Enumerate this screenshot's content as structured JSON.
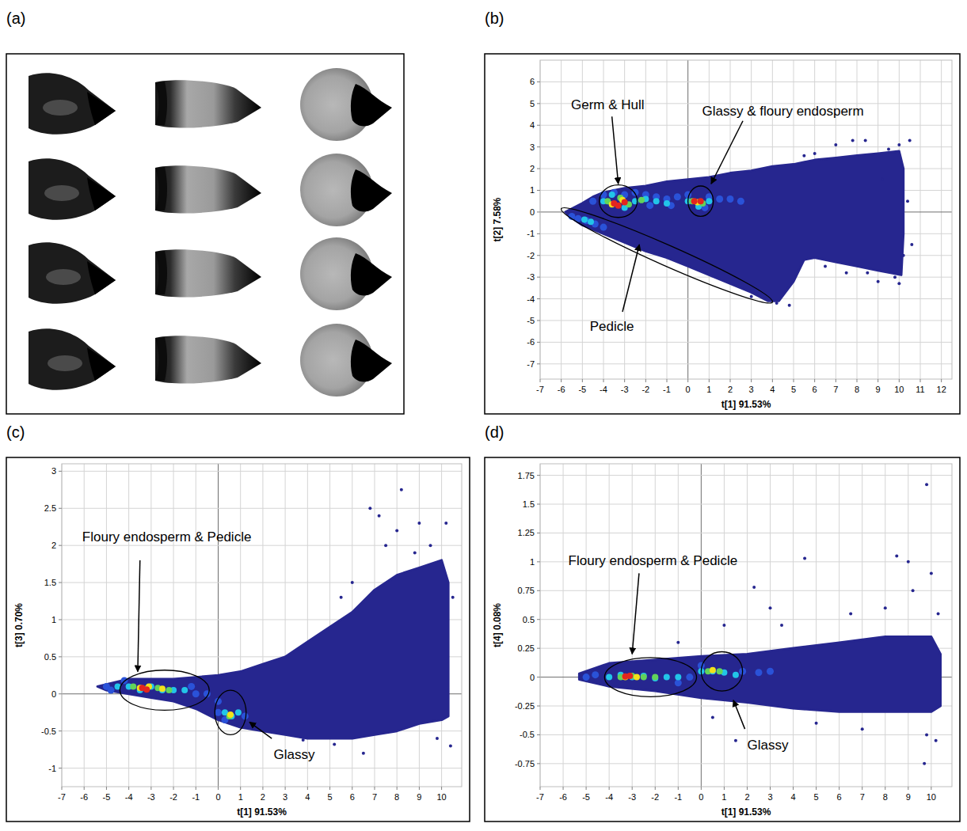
{
  "image_panel": {
    "label": "(a)"
  },
  "chart_data": [
    {
      "type": "scatter",
      "label": "(b)",
      "x_label": "t[1] 91.53%",
      "y_label": "t[2] 7.58%",
      "grid": true,
      "xlim": [
        -7,
        12.5
      ],
      "ylim": [
        -7.7,
        7
      ],
      "xticks": [
        -7,
        -6,
        -5,
        -4,
        -3,
        -2,
        -1,
        0,
        1,
        2,
        3,
        4,
        5,
        6,
        7,
        8,
        9,
        10,
        11,
        12
      ],
      "yticks": [
        -7,
        -6,
        -5,
        -4,
        -3,
        -2,
        -1,
        0,
        1,
        2,
        3,
        4,
        5,
        6
      ],
      "cloud": {
        "color": "#26268f",
        "x": [
          -5.8,
          -5,
          -4.5,
          -4,
          -3,
          -2,
          -1,
          0,
          1,
          2,
          3,
          4,
          5,
          6,
          7,
          8,
          9,
          10,
          10.2,
          10.2,
          10.1,
          9,
          8,
          7,
          6,
          5.5,
          5,
          4.3,
          3.8,
          3,
          2,
          1,
          0,
          -1,
          -2,
          -3,
          -4,
          -5,
          -5.6
        ],
        "y": [
          0,
          0.4,
          0.7,
          0.9,
          1.1,
          1.2,
          1.4,
          1.5,
          1.6,
          1.8,
          1.9,
          2.1,
          2.2,
          2.4,
          2.5,
          2.6,
          2.7,
          2.8,
          2.0,
          -1,
          -2.9,
          -2.7,
          -2.5,
          -2.3,
          -2.1,
          -2.2,
          -3.2,
          -4.1,
          -4.1,
          -3.7,
          -3.3,
          -2.9,
          -2.5,
          -2.1,
          -1.8,
          -1.4,
          -1.0,
          -0.6,
          -0.2
        ]
      },
      "points": {
        "color": "#26268f",
        "x": [
          10.5,
          10,
          9.5,
          8.4,
          7.8,
          7,
          9,
          10,
          9.8,
          8.5,
          6.5,
          4.8,
          4.2,
          3,
          6,
          9.2,
          10.4,
          10.6,
          7.5,
          5.5,
          10.2
        ],
        "y": [
          3.3,
          3.1,
          2.9,
          3.3,
          3.3,
          3.1,
          -3.2,
          -3.3,
          -3.0,
          -2.8,
          -2.5,
          -4.3,
          -4.2,
          -3.9,
          2.7,
          1.5,
          0.5,
          -1.5,
          -2.8,
          2.6,
          -2.0
        ]
      },
      "density": [
        {
          "color": "#2a52d8",
          "x": [
            -4.5,
            -4,
            -3.5,
            -3,
            -2.5,
            -2,
            -1.5,
            -1,
            -0.5,
            0,
            1,
            1.5,
            2,
            2.5,
            -5.5,
            -5.2,
            -4.8,
            -4.4,
            -4,
            -1.8,
            -0.8,
            0.8
          ],
          "y": [
            0.5,
            0.8,
            0.9,
            0.8,
            0.9,
            0.8,
            0.7,
            0.6,
            0.7,
            0.8,
            0.7,
            0.6,
            0.6,
            0.5,
            -0.2,
            -0.3,
            -0.4,
            -0.55,
            -0.7,
            0.3,
            0.3,
            0.2
          ]
        },
        {
          "color": "#22c4e8",
          "x": [
            -4,
            -3.6,
            -3,
            -2.5,
            -2,
            -1.5,
            -1,
            0,
            0.5,
            1,
            -4.9,
            -4.6
          ],
          "y": [
            0.5,
            0.8,
            0.2,
            0.5,
            0.6,
            0.5,
            0.4,
            0.5,
            0.25,
            0.5,
            -0.35,
            -0.45
          ]
        },
        {
          "color": "#62d35a",
          "x": [
            -3.8,
            -3.2,
            -2.8,
            -2.2,
            0.2,
            0.7
          ],
          "y": [
            0.5,
            0.65,
            0.35,
            0.55,
            0.5,
            0.4
          ]
        },
        {
          "color": "#f2e21a",
          "x": [
            -3.6,
            -3.1,
            0.45
          ],
          "y": [
            0.35,
            0.55,
            0.45
          ]
        },
        {
          "color": "#e3261e",
          "x": [
            -3.5,
            -3.3,
            -3.0,
            0.3,
            0.6
          ],
          "y": [
            0.4,
            0.3,
            0.45,
            0.5,
            0.5
          ]
        }
      ],
      "annotations": [
        {
          "text": "Germ & Hull",
          "x": -3.8,
          "y": 4.9,
          "arrow_from": [
            -3.6,
            4.4
          ],
          "arrow_to": [
            -3.3,
            1.3
          ],
          "ellipse": {
            "cx": -3.3,
            "cy": 0.5,
            "rx": 0.9,
            "ry": 0.75
          }
        },
        {
          "text": "Glassy & floury endosperm",
          "x": 4.5,
          "y": 4.6,
          "arrow_from": [
            2.6,
            4.2
          ],
          "arrow_to": [
            1.1,
            1.3
          ],
          "ellipse": {
            "cx": 0.6,
            "cy": 0.5,
            "rx": 0.6,
            "ry": 0.7
          }
        },
        {
          "text": "Pedicle",
          "x": -3.6,
          "y": -5.3,
          "arrow_from": [
            -3.1,
            -4.6
          ],
          "arrow_to": [
            -2.3,
            -1.5
          ],
          "ellipse": {
            "from": [
              -6,
              0.15
            ],
            "to": [
              4,
              -4.15
            ]
          }
        }
      ]
    },
    {
      "type": "scatter",
      "label": "(c)",
      "x_label": "t[1] 91.53%",
      "y_label": "t[3] 0.70%",
      "grid": true,
      "xlim": [
        -7,
        10.9
      ],
      "ylim": [
        -1.25,
        3.1
      ],
      "xticks": [
        -7,
        -6,
        -5,
        -4,
        -3,
        -2,
        -1,
        0,
        1,
        2,
        3,
        4,
        5,
        6,
        7,
        8,
        9,
        10
      ],
      "yticks": [
        -1,
        -0.5,
        0,
        0.5,
        1,
        1.5,
        2,
        2.5,
        3
      ],
      "cloud": {
        "color": "#26268f",
        "x": [
          -5.4,
          -4,
          -2,
          0,
          1,
          2,
          3,
          4,
          5,
          6,
          7,
          8,
          9,
          10,
          10.3,
          10.3,
          10,
          9,
          8,
          7,
          6,
          5,
          4,
          3,
          2,
          1,
          0,
          -1,
          -2,
          -3,
          -4,
          -5
        ],
        "y": [
          0.1,
          0.2,
          0.2,
          0.25,
          0.3,
          0.4,
          0.5,
          0.7,
          0.9,
          1.1,
          1.4,
          1.6,
          1.7,
          1.8,
          1.5,
          -0.3,
          -0.35,
          -0.4,
          -0.5,
          -0.55,
          -0.6,
          -0.6,
          -0.6,
          -0.55,
          -0.5,
          -0.45,
          -0.35,
          -0.2,
          -0.1,
          -0.05,
          0.0,
          0.05
        ]
      },
      "points": {
        "color": "#26268f",
        "x": [
          6.8,
          7.2,
          8.2,
          9,
          10.2,
          7.5,
          8.8,
          9.5,
          6,
          5.5,
          10.5,
          10.4,
          9.8,
          6.5,
          5.2,
          3.8,
          8
        ],
        "y": [
          2.5,
          2.4,
          2.75,
          2.3,
          2.3,
          2.0,
          1.9,
          2.0,
          1.5,
          1.3,
          1.3,
          -0.7,
          -0.6,
          -0.8,
          -0.68,
          -0.62,
          2.2
        ]
      },
      "density": [
        {
          "color": "#2a52d8",
          "x": [
            -5,
            -4.8,
            -4.2,
            -1.2,
            -1,
            -0.5,
            0,
            0,
            0.3,
            1.2
          ],
          "y": [
            0.1,
            0.05,
            0.18,
            0.1,
            0,
            0,
            -0.1,
            -0.25,
            -0.35,
            -0.3
          ]
        },
        {
          "color": "#22c4e8",
          "x": [
            -4.5,
            -4,
            -3.5,
            -3,
            -2.5,
            -2,
            -1.5,
            0.3,
            0.6,
            0.9
          ],
          "y": [
            0.1,
            0.1,
            0.05,
            0.1,
            0.05,
            0.05,
            0.05,
            -0.25,
            -0.3,
            -0.25
          ]
        },
        {
          "color": "#62d35a",
          "x": [
            -3.8,
            -3.2,
            -2.7,
            -2.2,
            0.5
          ],
          "y": [
            0.1,
            0.07,
            0.08,
            0.05,
            -0.3
          ]
        },
        {
          "color": "#f2e21a",
          "x": [
            -3.5,
            -3.1,
            -2.5,
            0.55
          ],
          "y": [
            0.08,
            0.1,
            0.07,
            -0.28
          ]
        },
        {
          "color": "#e3261e",
          "x": [
            -3.4,
            -3.2
          ],
          "y": [
            0.08,
            0.06
          ]
        }
      ],
      "annotations": [
        {
          "text": "Floury endosperm & Pedicle",
          "x": -2.3,
          "y": 2.1,
          "arrow_from": [
            -3.5,
            1.8
          ],
          "arrow_to": [
            -3.6,
            0.3
          ],
          "ellipse": {
            "cx": -2.4,
            "cy": 0.05,
            "rx": 2.0,
            "ry": 0.27
          }
        },
        {
          "text": "Glassy",
          "x": 3.4,
          "y": -0.83,
          "arrow_from": [
            2.4,
            -0.6
          ],
          "arrow_to": [
            1.4,
            -0.38
          ],
          "ellipse": {
            "cx": 0.55,
            "cy": -0.25,
            "rx": 0.7,
            "ry": 0.3
          }
        }
      ]
    },
    {
      "type": "scatter",
      "label": "(d)",
      "x_label": "t[1] 91.53%",
      "y_label": "t[4] 0.08%",
      "grid": true,
      "xlim": [
        -7,
        10.9
      ],
      "ylim": [
        -0.95,
        1.85
      ],
      "xticks": [
        -7,
        -6,
        -5,
        -4,
        -3,
        -2,
        -1,
        0,
        1,
        2,
        3,
        4,
        5,
        6,
        7,
        8,
        9,
        10
      ],
      "yticks": [
        -0.75,
        -0.5,
        -0.25,
        0,
        0.25,
        0.5,
        0.75,
        1,
        1.25,
        1.5,
        1.75
      ],
      "cloud": {
        "color": "#26268f",
        "x": [
          -5.3,
          -4,
          -2,
          0,
          2,
          4,
          6,
          8,
          10,
          10.4,
          10.4,
          10,
          8,
          6,
          4,
          2,
          0,
          -2,
          -4,
          -5.3
        ],
        "y": [
          0.03,
          0.12,
          0.15,
          0.18,
          0.2,
          0.25,
          0.3,
          0.35,
          0.35,
          0.2,
          -0.25,
          -0.3,
          -0.3,
          -0.3,
          -0.27,
          -0.22,
          -0.18,
          -0.12,
          -0.08,
          -0.02
        ]
      },
      "points": {
        "color": "#26268f",
        "x": [
          9.8,
          8.5,
          9,
          4.5,
          2.3,
          3,
          6.5,
          8,
          10,
          10.3,
          9.7,
          10.2,
          9.8,
          1.5,
          7,
          5,
          3.5,
          1,
          9.2,
          -1,
          0.5
        ],
        "y": [
          1.67,
          1.05,
          1.0,
          1.03,
          0.78,
          0.6,
          0.55,
          0.6,
          0.9,
          0.55,
          -0.75,
          -0.55,
          -0.5,
          -0.55,
          -0.45,
          -0.4,
          0.45,
          0.45,
          0.75,
          0.3,
          -0.35
        ]
      },
      "density": [
        {
          "color": "#2a52d8",
          "x": [
            -5,
            -4.6,
            -0.5,
            1.8,
            2.5,
            3,
            -1,
            0
          ],
          "y": [
            0,
            0.02,
            0,
            0.05,
            0.04,
            0.05,
            -0.05,
            0.1
          ]
        },
        {
          "color": "#22c4e8",
          "x": [
            -4,
            -3.5,
            -3,
            -2.5,
            -2,
            -1.5,
            -1,
            0,
            0.5,
            1,
            1.5
          ],
          "y": [
            0,
            0.02,
            0,
            0.01,
            -0.01,
            0,
            0,
            0.05,
            0.05,
            0.04,
            0.02
          ]
        },
        {
          "color": "#62d35a",
          "x": [
            -3.5,
            -3,
            -2.5,
            -2,
            0.3,
            0.8
          ],
          "y": [
            0,
            0.01,
            0,
            0,
            0.05,
            0.05
          ]
        },
        {
          "color": "#f2e21a",
          "x": [
            -3.3,
            -2.8,
            0.5
          ],
          "y": [
            0,
            0,
            0.06
          ]
        },
        {
          "color": "#e3261e",
          "x": [
            -3.3,
            -3.1
          ],
          "y": [
            0.005,
            0.01
          ]
        }
      ],
      "annotations": [
        {
          "text": "Floury endosperm & Pedicle",
          "x": -2.1,
          "y": 1.0,
          "arrow_from": [
            -2.7,
            0.9
          ],
          "arrow_to": [
            -3.0,
            0.2
          ],
          "ellipse": {
            "cx": -2.2,
            "cy": 0,
            "rx": 2.0,
            "ry": 0.17
          }
        },
        {
          "text": "Glassy",
          "x": 2.9,
          "y": -0.6,
          "arrow_from": [
            1.9,
            -0.45
          ],
          "arrow_to": [
            1.4,
            -0.2
          ],
          "ellipse": {
            "cx": 0.9,
            "cy": 0.05,
            "rx": 0.9,
            "ry": 0.17
          }
        }
      ]
    }
  ]
}
